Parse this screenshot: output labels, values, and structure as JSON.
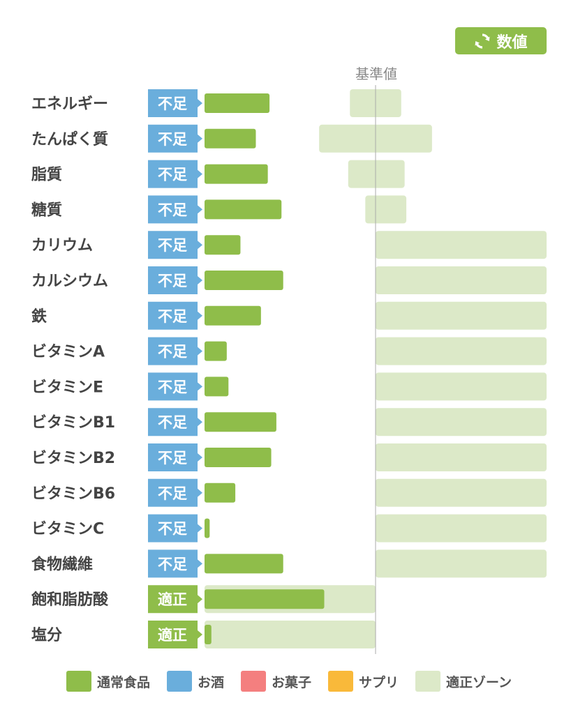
{
  "header": {
    "toggle_label": "数値",
    "toggle_icon": "refresh-icon"
  },
  "chart_data": {
    "type": "bar",
    "orientation": "horizontal",
    "baseline_label": "基準値",
    "value_unit": "fraction of 基準値",
    "categories": [
      "エネルギー",
      "たんぱく質",
      "脂質",
      "糖質",
      "カリウム",
      "カルシウム",
      "鉄",
      "ビタミンA",
      "ビタミンE",
      "ビタミンB1",
      "ビタミンB2",
      "ビタミンB6",
      "ビタミンC",
      "食物繊維",
      "飽和脂肪酸",
      "塩分"
    ],
    "status": [
      "不足",
      "不足",
      "不足",
      "不足",
      "不足",
      "不足",
      "不足",
      "不足",
      "不足",
      "不足",
      "不足",
      "不足",
      "不足",
      "不足",
      "適正",
      "適正"
    ],
    "series": [
      {
        "name": "通常食品",
        "color": "#8fbd4a",
        "values": [
          0.38,
          0.3,
          0.37,
          0.45,
          0.21,
          0.46,
          0.33,
          0.13,
          0.14,
          0.42,
          0.39,
          0.18,
          0.03,
          0.46,
          0.7,
          0.04
        ]
      }
    ],
    "appropriate_zone": [
      [
        0.85,
        1.15
      ],
      [
        0.67,
        1.33
      ],
      [
        0.84,
        1.17
      ],
      [
        0.94,
        1.18
      ],
      [
        1.0,
        2.0
      ],
      [
        1.0,
        2.0
      ],
      [
        1.0,
        2.0
      ],
      [
        1.0,
        2.0
      ],
      [
        1.0,
        2.0
      ],
      [
        1.0,
        2.0
      ],
      [
        1.0,
        2.0
      ],
      [
        1.0,
        2.0
      ],
      [
        1.0,
        2.0
      ],
      [
        1.0,
        2.0
      ],
      [
        0,
        1.0
      ],
      [
        0,
        1.0
      ]
    ],
    "xlim": [
      0,
      2.0
    ],
    "legend": [
      {
        "label": "通常食品",
        "color": "#8fbd4a"
      },
      {
        "label": "お酒",
        "color": "#6aaedc"
      },
      {
        "label": "お菓子",
        "color": "#f47f7f"
      },
      {
        "label": "サプリ",
        "color": "#f9b93a"
      },
      {
        "label": "適正ゾーン",
        "color": "#dce9c8"
      }
    ],
    "status_colors": {
      "不足": "#6aaedc",
      "適正": "#8fbd4a"
    }
  }
}
